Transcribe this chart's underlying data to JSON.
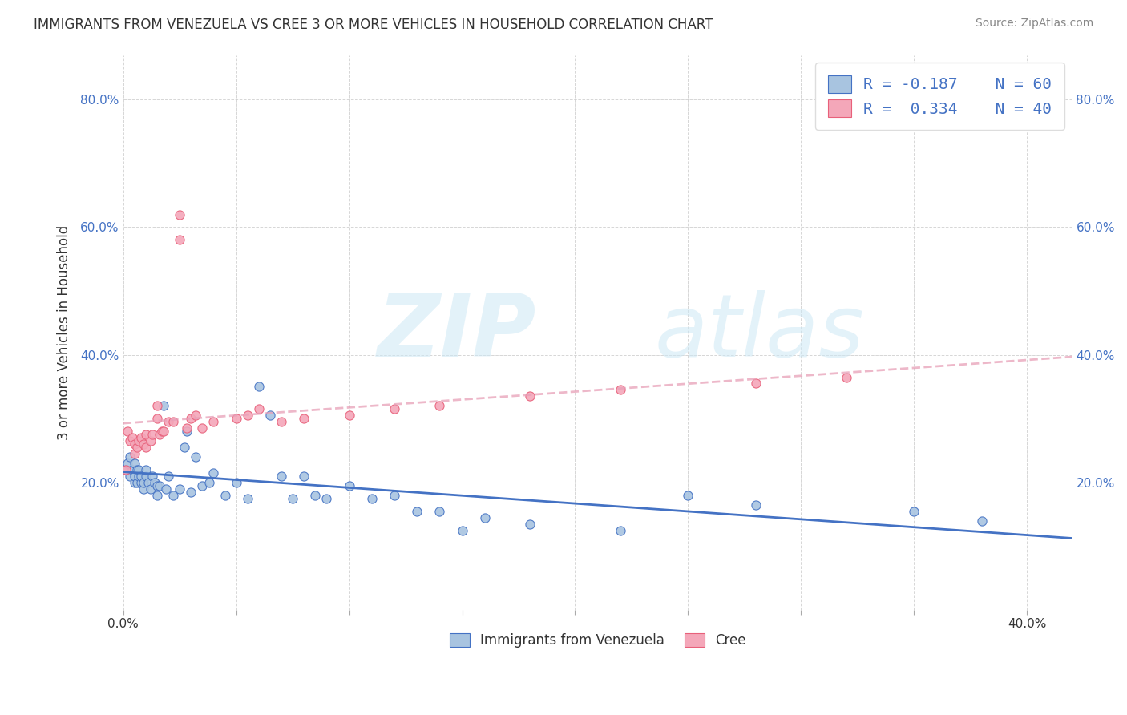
{
  "title": "IMMIGRANTS FROM VENEZUELA VS CREE 3 OR MORE VEHICLES IN HOUSEHOLD CORRELATION CHART",
  "source": "Source: ZipAtlas.com",
  "ylabel": "3 or more Vehicles in Household",
  "legend_labels": [
    "Immigrants from Venezuela",
    "Cree"
  ],
  "r_venezuela": -0.187,
  "n_venezuela": 60,
  "r_cree": 0.334,
  "n_cree": 40,
  "xlim": [
    0.0,
    0.42
  ],
  "ylim": [
    0.0,
    0.87
  ],
  "color_venezuela": "#a8c4e0",
  "color_cree": "#f4a7b9",
  "line_color_venezuela": "#4472c4",
  "line_color_cree": "#e8607a",
  "background_color": "#ffffff",
  "watermark_zip": "ZIP",
  "watermark_atlas": "atlas",
  "venezuela_x": [
    0.001,
    0.002,
    0.003,
    0.003,
    0.004,
    0.005,
    0.005,
    0.005,
    0.006,
    0.006,
    0.007,
    0.007,
    0.008,
    0.008,
    0.009,
    0.009,
    0.01,
    0.01,
    0.011,
    0.012,
    0.013,
    0.014,
    0.015,
    0.015,
    0.016,
    0.018,
    0.019,
    0.02,
    0.022,
    0.025,
    0.027,
    0.028,
    0.03,
    0.032,
    0.035,
    0.038,
    0.04,
    0.045,
    0.05,
    0.055,
    0.06,
    0.065,
    0.07,
    0.075,
    0.08,
    0.085,
    0.09,
    0.1,
    0.11,
    0.12,
    0.13,
    0.14,
    0.15,
    0.16,
    0.18,
    0.22,
    0.25,
    0.28,
    0.35,
    0.38
  ],
  "venezuela_y": [
    0.22,
    0.23,
    0.21,
    0.24,
    0.22,
    0.2,
    0.23,
    0.21,
    0.22,
    0.2,
    0.21,
    0.22,
    0.2,
    0.21,
    0.19,
    0.2,
    0.21,
    0.22,
    0.2,
    0.19,
    0.21,
    0.2,
    0.195,
    0.18,
    0.195,
    0.32,
    0.19,
    0.21,
    0.18,
    0.19,
    0.255,
    0.28,
    0.185,
    0.24,
    0.195,
    0.2,
    0.215,
    0.18,
    0.2,
    0.175,
    0.35,
    0.305,
    0.21,
    0.175,
    0.21,
    0.18,
    0.175,
    0.195,
    0.175,
    0.18,
    0.155,
    0.155,
    0.125,
    0.145,
    0.135,
    0.125,
    0.18,
    0.165,
    0.155,
    0.14
  ],
  "cree_x": [
    0.001,
    0.002,
    0.003,
    0.004,
    0.005,
    0.005,
    0.006,
    0.007,
    0.008,
    0.009,
    0.01,
    0.01,
    0.012,
    0.013,
    0.015,
    0.015,
    0.016,
    0.017,
    0.018,
    0.02,
    0.022,
    0.025,
    0.025,
    0.028,
    0.03,
    0.032,
    0.035,
    0.04,
    0.05,
    0.055,
    0.06,
    0.07,
    0.08,
    0.1,
    0.12,
    0.14,
    0.18,
    0.22,
    0.28,
    0.32
  ],
  "cree_y": [
    0.22,
    0.28,
    0.265,
    0.27,
    0.245,
    0.26,
    0.255,
    0.265,
    0.27,
    0.26,
    0.255,
    0.275,
    0.265,
    0.275,
    0.3,
    0.32,
    0.275,
    0.28,
    0.28,
    0.295,
    0.295,
    0.58,
    0.62,
    0.285,
    0.3,
    0.305,
    0.285,
    0.295,
    0.3,
    0.305,
    0.315,
    0.295,
    0.3,
    0.305,
    0.315,
    0.32,
    0.335,
    0.345,
    0.355,
    0.365
  ]
}
